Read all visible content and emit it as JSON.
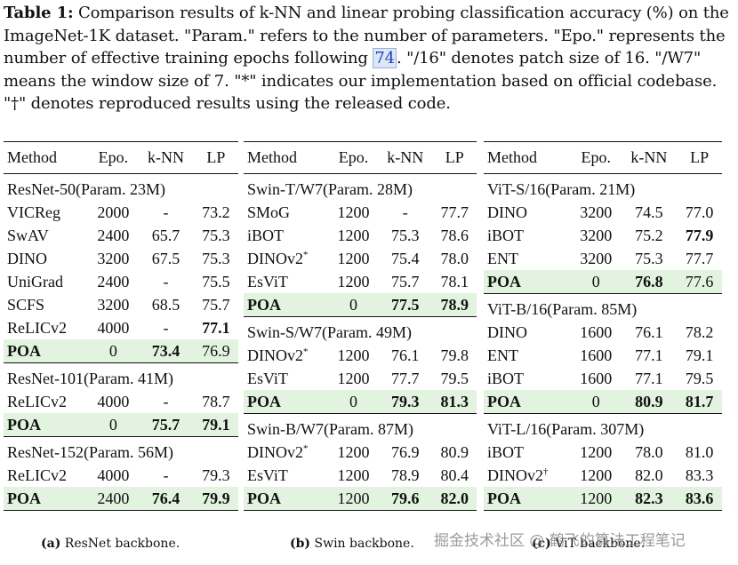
{
  "caption": {
    "label": "Table 1:",
    "text_before_cite": "Comparison results of k-NN and linear probing classification accuracy (%) on the ImageNet-1K dataset. \"Param.\" refers to the number of parameters. \"Epo.\" represents the number of effective training epochs following ",
    "cite": "74",
    "text_after_cite": ". \"/16\" denotes patch size of 16. \"/W7\" means the window size of 7. \"*\" indicates our implementation based on official codebase. \"†\" denotes reproduced results using the released code."
  },
  "columns": [
    "Method",
    "Epo.",
    "k-NN",
    "LP"
  ],
  "tables": {
    "resnet": {
      "subcaption_label": "(a)",
      "subcaption_text": "ResNet backbone.",
      "groups": [
        {
          "name": "ResNet-50(Param. 23M)",
          "rows": [
            [
              "VICReg",
              "2000",
              "-",
              "73.2"
            ],
            [
              "SwAV",
              "2400",
              "65.7",
              "75.3"
            ],
            [
              "DINO",
              "3200",
              "67.5",
              "75.3"
            ],
            [
              "UniGrad",
              "2400",
              "-",
              "75.5"
            ],
            [
              "SCFS",
              "3200",
              "68.5",
              "75.7"
            ],
            [
              "ReLICv2",
              "4000",
              "-",
              "77.1"
            ],
            [
              "POA",
              "0",
              "73.4",
              "76.9"
            ]
          ]
        },
        {
          "name": "ResNet-101(Param. 41M)",
          "rows": [
            [
              "ReLICv2",
              "4000",
              "-",
              "78.7"
            ],
            [
              "POA",
              "0",
              "75.7",
              "79.1"
            ]
          ]
        },
        {
          "name": "ResNet-152(Param. 56M)",
          "rows": [
            [
              "ReLICv2",
              "4000",
              "-",
              "79.3"
            ],
            [
              "POA",
              "2400",
              "76.4",
              "79.9"
            ]
          ]
        }
      ]
    },
    "swin": {
      "subcaption_label": "(b)",
      "subcaption_text": "Swin backbone.",
      "groups": [
        {
          "name": "Swin-T/W7(Param. 28M)",
          "rows": [
            [
              "SMoG",
              "1200",
              "-",
              "77.7"
            ],
            [
              "iBOT",
              "1200",
              "75.3",
              "78.6"
            ],
            [
              "DINOv2",
              "1200",
              "75.4",
              "78.0"
            ],
            [
              "EsViT",
              "1200",
              "75.7",
              "78.1"
            ],
            [
              "POA",
              "0",
              "77.5",
              "78.9"
            ]
          ]
        },
        {
          "name": "Swin-S/W7(Param. 49M)",
          "rows": [
            [
              "DINOv2",
              "1200",
              "76.1",
              "79.8"
            ],
            [
              "EsViT",
              "1200",
              "77.7",
              "79.5"
            ],
            [
              "POA",
              "0",
              "79.3",
              "81.3"
            ]
          ]
        },
        {
          "name": "Swin-B/W7(Param. 87M)",
          "rows": [
            [
              "DINOv2",
              "1200",
              "76.9",
              "80.9"
            ],
            [
              "EsViT",
              "1200",
              "78.9",
              "80.4"
            ],
            [
              "POA",
              "1200",
              "79.6",
              "82.0"
            ]
          ]
        }
      ]
    },
    "vit": {
      "subcaption_label": "(c)",
      "subcaption_text": "ViT backbone.",
      "groups": [
        {
          "name": "ViT-S/16(Param. 21M)",
          "rows": [
            [
              "DINO",
              "3200",
              "74.5",
              "77.0"
            ],
            [
              "iBOT",
              "3200",
              "75.2",
              "77.9"
            ],
            [
              "ENT",
              "3200",
              "75.3",
              "77.7"
            ],
            [
              "POA",
              "0",
              "76.8",
              "77.6"
            ]
          ]
        },
        {
          "name": "ViT-B/16(Param. 85M)",
          "rows": [
            [
              "DINO",
              "1600",
              "76.1",
              "78.2"
            ],
            [
              "ENT",
              "1600",
              "77.1",
              "79.1"
            ],
            [
              "iBOT",
              "1600",
              "77.1",
              "79.5"
            ],
            [
              "POA",
              "0",
              "80.9",
              "81.7"
            ]
          ]
        },
        {
          "name": "ViT-L/16(Param. 307M)",
          "rows": [
            [
              "iBOT",
              "1200",
              "78.0",
              "81.0"
            ],
            [
              "DINOv2",
              "1200",
              "82.0",
              "83.3"
            ],
            [
              "POA",
              "1200",
              "82.3",
              "83.6"
            ]
          ]
        }
      ]
    }
  },
  "marks": {
    "star": "*",
    "dagger": "†"
  },
  "watermark": "掘金技术社区 @ 鹤飞的算法工程笔记"
}
